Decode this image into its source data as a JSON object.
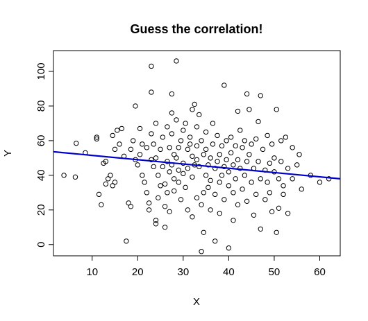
{
  "chart_data": {
    "type": "scatter",
    "title": "Guess the correlation!",
    "xlabel": "X",
    "ylabel": "Y",
    "xlim": [
      1.5,
      64.5
    ],
    "ylim": [
      -6.5,
      112
    ],
    "xticks": [
      10,
      20,
      30,
      40,
      50,
      60
    ],
    "yticks": [
      0,
      20,
      40,
      60,
      80,
      100
    ],
    "grid": false,
    "marker": "open-circle",
    "regression_line": {
      "x": [
        1.5,
        64.5
      ],
      "y": [
        53.6,
        38.0
      ],
      "color": "#0000cd"
    },
    "points": [
      [
        3.8,
        40
      ],
      [
        6.3,
        39
      ],
      [
        6.5,
        58.5
      ],
      [
        8.5,
        53
      ],
      [
        11,
        61
      ],
      [
        11,
        62
      ],
      [
        11.5,
        29
      ],
      [
        12,
        23
      ],
      [
        12.5,
        47
      ],
      [
        13,
        48
      ],
      [
        13,
        35
      ],
      [
        13.5,
        38
      ],
      [
        14,
        40
      ],
      [
        14.5,
        63
      ],
      [
        14.5,
        34
      ],
      [
        15,
        36
      ],
      [
        15,
        55
      ],
      [
        15.5,
        66
      ],
      [
        16,
        58
      ],
      [
        16.5,
        67
      ],
      [
        17,
        51
      ],
      [
        17.5,
        2
      ],
      [
        18,
        24
      ],
      [
        18.5,
        22
      ],
      [
        18.5,
        55
      ],
      [
        19,
        60
      ],
      [
        19.5,
        49
      ],
      [
        19.5,
        80
      ],
      [
        20,
        46
      ],
      [
        20.5,
        67
      ],
      [
        20.5,
        52
      ],
      [
        21,
        58
      ],
      [
        21,
        40
      ],
      [
        21.5,
        36
      ],
      [
        22,
        56
      ],
      [
        22,
        30
      ],
      [
        22.5,
        24
      ],
      [
        22.5,
        20
      ],
      [
        23,
        103
      ],
      [
        23,
        88
      ],
      [
        23,
        64
      ],
      [
        23,
        49
      ],
      [
        23.5,
        58
      ],
      [
        23.5,
        45
      ],
      [
        24,
        50
      ],
      [
        24,
        70
      ],
      [
        24,
        14
      ],
      [
        24,
        12
      ],
      [
        24.5,
        40
      ],
      [
        24.5,
        27
      ],
      [
        25,
        34
      ],
      [
        25,
        55
      ],
      [
        25.5,
        62
      ],
      [
        25.5,
        45
      ],
      [
        26,
        35
      ],
      [
        26,
        22
      ],
      [
        26,
        10
      ],
      [
        26.5,
        30
      ],
      [
        26.5,
        68
      ],
      [
        26.5,
        48
      ],
      [
        27,
        56
      ],
      [
        27,
        42
      ],
      [
        27,
        19
      ],
      [
        27.5,
        76
      ],
      [
        27.5,
        87
      ],
      [
        27.5,
        64
      ],
      [
        27.5,
        46
      ],
      [
        28,
        52
      ],
      [
        28,
        31
      ],
      [
        28,
        38
      ],
      [
        28.5,
        106
      ],
      [
        28.5,
        72
      ],
      [
        28.5,
        50
      ],
      [
        29,
        43
      ],
      [
        29,
        36
      ],
      [
        29,
        56
      ],
      [
        29.5,
        26
      ],
      [
        29.5,
        60
      ],
      [
        30,
        47
      ],
      [
        30,
        66
      ],
      [
        30,
        41
      ],
      [
        30.5,
        70
      ],
      [
        30.5,
        33
      ],
      [
        31,
        55
      ],
      [
        31,
        44
      ],
      [
        31,
        20
      ],
      [
        31.5,
        62
      ],
      [
        31.5,
        58
      ],
      [
        32,
        78
      ],
      [
        32,
        51
      ],
      [
        32,
        39
      ],
      [
        32,
        16
      ],
      [
        32.5,
        81
      ],
      [
        32.5,
        46
      ],
      [
        33,
        68
      ],
      [
        33,
        57
      ],
      [
        33,
        49
      ],
      [
        33,
        27
      ],
      [
        33.5,
        75
      ],
      [
        33.5,
        45
      ],
      [
        34,
        60
      ],
      [
        34,
        -4
      ],
      [
        34,
        23
      ],
      [
        34.5,
        52
      ],
      [
        34.5,
        30
      ],
      [
        34.5,
        7
      ],
      [
        35,
        65
      ],
      [
        35,
        40
      ],
      [
        35,
        55
      ],
      [
        35.5,
        46
      ],
      [
        35.5,
        33
      ],
      [
        36,
        37
      ],
      [
        36,
        50
      ],
      [
        36,
        20
      ],
      [
        36.5,
        58
      ],
      [
        36.5,
        70
      ],
      [
        37,
        44
      ],
      [
        37,
        29
      ],
      [
        37,
        2
      ],
      [
        37.5,
        63
      ],
      [
        37.5,
        48
      ],
      [
        38,
        52
      ],
      [
        38,
        36
      ],
      [
        38,
        18
      ],
      [
        38.5,
        57
      ],
      [
        38.5,
        40
      ],
      [
        39,
        92
      ],
      [
        39,
        45
      ],
      [
        39,
        26
      ],
      [
        39.5,
        60
      ],
      [
        39.5,
        49
      ],
      [
        40,
        34
      ],
      [
        40,
        -2
      ],
      [
        40,
        42
      ],
      [
        40.5,
        62
      ],
      [
        40.5,
        53
      ],
      [
        41,
        46
      ],
      [
        41,
        30
      ],
      [
        41,
        14
      ],
      [
        41.5,
        57
      ],
      [
        41.5,
        38
      ],
      [
        42,
        77
      ],
      [
        42,
        49
      ],
      [
        42,
        23
      ],
      [
        42.5,
        66
      ],
      [
        42.5,
        44
      ],
      [
        43,
        56
      ],
      [
        43,
        32
      ],
      [
        43.5,
        60
      ],
      [
        43.5,
        40
      ],
      [
        44,
        87
      ],
      [
        44,
        48
      ],
      [
        44,
        25
      ],
      [
        44.5,
        78
      ],
      [
        44.5,
        52
      ],
      [
        45,
        36
      ],
      [
        45,
        58
      ],
      [
        45.5,
        44
      ],
      [
        45.5,
        17
      ],
      [
        46,
        61
      ],
      [
        46,
        29
      ],
      [
        46.5,
        48
      ],
      [
        46.5,
        71
      ],
      [
        47,
        86
      ],
      [
        47,
        38
      ],
      [
        47,
        9
      ],
      [
        47.5,
        55
      ],
      [
        48,
        43
      ],
      [
        48,
        26
      ],
      [
        48.5,
        63
      ],
      [
        48.5,
        36
      ],
      [
        49,
        47
      ],
      [
        49,
        30
      ],
      [
        49.5,
        58
      ],
      [
        49.5,
        19
      ],
      [
        50,
        42
      ],
      [
        50,
        50
      ],
      [
        50.5,
        78
      ],
      [
        50.5,
        7
      ],
      [
        51,
        38
      ],
      [
        51,
        21
      ],
      [
        51.5,
        48
      ],
      [
        51.5,
        60
      ],
      [
        52,
        34
      ],
      [
        52,
        29
      ],
      [
        52.5,
        62
      ],
      [
        53,
        44
      ],
      [
        53,
        18
      ],
      [
        54,
        56
      ],
      [
        54,
        38
      ],
      [
        55,
        46
      ],
      [
        55.5,
        52
      ],
      [
        56,
        32
      ],
      [
        58,
        40
      ],
      [
        60,
        36
      ],
      [
        62,
        38
      ]
    ]
  }
}
